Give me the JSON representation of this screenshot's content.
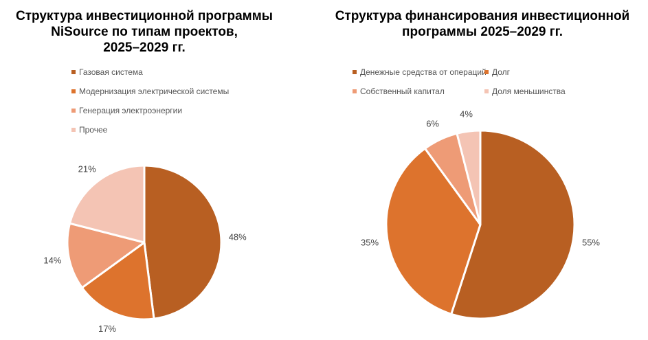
{
  "chart_data": [
    {
      "type": "pie",
      "title": "Структура инвестиционной программы\nNiSource по типам проектов,\n2025–2029 гг.",
      "categories": [
        "Газовая система",
        "Модернизация электрической системы",
        "Генерация электроэнергии",
        "Прочее"
      ],
      "values": [
        48,
        17,
        14,
        21
      ],
      "data_labels": [
        "48%",
        "17%",
        "14%",
        "21%"
      ],
      "colors": [
        "#B85F22",
        "#DD732D",
        "#EE9B76",
        "#F4C4B4"
      ],
      "legend_position": "top"
    },
    {
      "type": "pie",
      "title": "Структура финансирования инвестиционной\nпрограммы 2025–2029 гг.",
      "categories": [
        "Денежные средства от операций",
        "Долг",
        "Собственный капитал",
        "Доля меньшинства"
      ],
      "values": [
        55,
        35,
        6,
        4
      ],
      "data_labels": [
        "55%",
        "35%",
        "6%",
        "4%"
      ],
      "colors": [
        "#B85F22",
        "#DD732D",
        "#EE9B76",
        "#F4C4B4"
      ],
      "legend_position": "top"
    }
  ]
}
